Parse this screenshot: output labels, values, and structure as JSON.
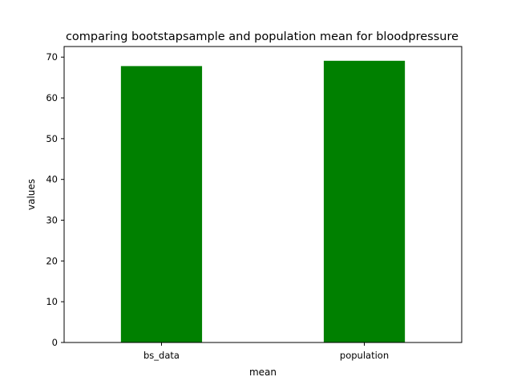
{
  "chart_data": {
    "type": "bar",
    "title": "comparing bootstapsample and population mean for bloodpressure",
    "xlabel": "mean",
    "ylabel": "values",
    "categories": [
      "bs_data",
      "population"
    ],
    "values": [
      67.8,
      69.1
    ],
    "ylim": [
      0,
      72.6
    ],
    "yticks": [
      0,
      10,
      20,
      30,
      40,
      50,
      60,
      70
    ],
    "bar_color": "#008000",
    "grid": false,
    "legend": "none"
  }
}
